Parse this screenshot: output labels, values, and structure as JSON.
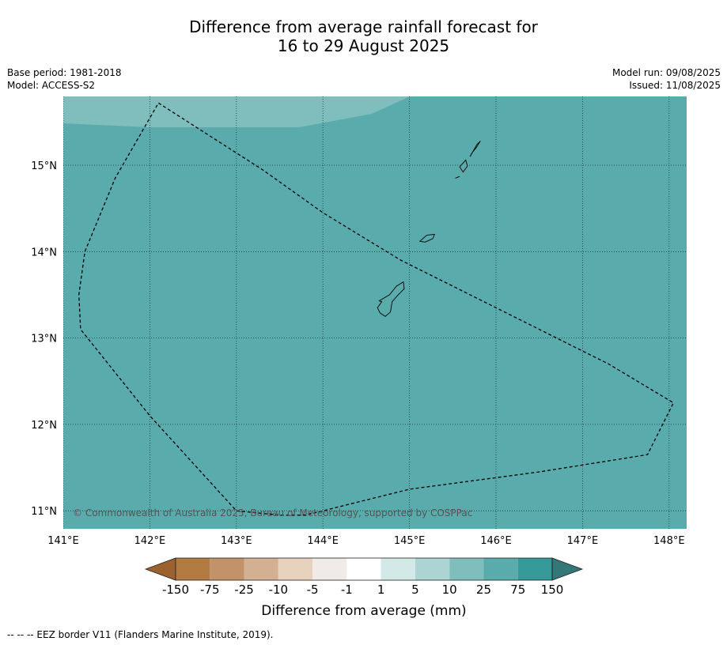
{
  "title_line1": "Difference from average rainfall forecast for",
  "title_line2": "16 to 29 August 2025",
  "base_period": "Base period: 1981-2018",
  "model": "Model: ACCESS-S2",
  "model_run": "Model run: 09/08/2025",
  "issued": "Issued: 11/08/2025",
  "copyright": "© Commonwealth of Australia 2025, Bureau of Meteorology, supported by COSPPac",
  "x_ticks": [
    "141°E",
    "142°E",
    "143°E",
    "144°E",
    "145°E",
    "146°E",
    "147°E",
    "148°E"
  ],
  "y_ticks": [
    "15°N",
    "14°N",
    "13°N",
    "12°N",
    "11°N"
  ],
  "colorbar": {
    "title": "Difference from average (mm)",
    "labels": [
      "-150",
      "-75",
      "-25",
      "-10",
      "-5",
      "-1",
      "1",
      "5",
      "10",
      "25",
      "75",
      "150"
    ],
    "colors": [
      "#9b6230",
      "#b07a40",
      "#c29269",
      "#d4b092",
      "#e6d1bd",
      "#f0ebe7",
      "#ffffff",
      "#d3e9e7",
      "#abd4d3",
      "#80bebd",
      "#5aabac",
      "#35999a",
      "#337777"
    ]
  },
  "map": {
    "colors": {
      "ocean_main": "#5aabac",
      "ocean_light": "#80bebd"
    },
    "lon_range": [
      141,
      148.2
    ],
    "lat_range": [
      10.8,
      15.8
    ],
    "eez_border": [
      [
        142.1,
        15.72
      ],
      [
        143.3,
        14.95
      ],
      [
        144.0,
        14.45
      ],
      [
        144.9,
        13.9
      ],
      [
        145.2,
        13.75
      ],
      [
        146.0,
        13.35
      ],
      [
        146.8,
        12.95
      ],
      [
        147.3,
        12.7
      ],
      [
        148.05,
        12.25
      ],
      [
        147.75,
        11.65
      ],
      [
        146.5,
        11.45
      ],
      [
        145.0,
        11.25
      ],
      [
        143.8,
        10.95
      ],
      [
        143.5,
        10.95
      ],
      [
        143.0,
        11.0
      ],
      [
        142.0,
        12.1
      ],
      [
        141.2,
        13.1
      ],
      [
        141.18,
        13.5
      ],
      [
        141.25,
        14.0
      ],
      [
        141.6,
        14.85
      ],
      [
        142.1,
        15.72
      ]
    ],
    "islands": [
      {
        "name": "guam",
        "points": [
          [
            144.65,
            13.43
          ],
          [
            144.77,
            13.5
          ],
          [
            144.85,
            13.6
          ],
          [
            144.93,
            13.65
          ],
          [
            144.94,
            13.57
          ],
          [
            144.87,
            13.5
          ],
          [
            144.8,
            13.42
          ],
          [
            144.78,
            13.3
          ],
          [
            144.72,
            13.25
          ],
          [
            144.66,
            13.29
          ],
          [
            144.63,
            13.35
          ],
          [
            144.68,
            13.42
          ],
          [
            144.65,
            13.43
          ]
        ]
      },
      {
        "name": "rota",
        "points": [
          [
            145.12,
            14.12
          ],
          [
            145.2,
            14.19
          ],
          [
            145.29,
            14.2
          ],
          [
            145.27,
            14.15
          ],
          [
            145.18,
            14.11
          ],
          [
            145.12,
            14.12
          ]
        ]
      },
      {
        "name": "tinian",
        "points": [
          [
            145.58,
            14.98
          ],
          [
            145.65,
            15.06
          ],
          [
            145.67,
            14.99
          ],
          [
            145.62,
            14.92
          ],
          [
            145.58,
            14.98
          ]
        ]
      },
      {
        "name": "saipan",
        "points": [
          [
            145.7,
            15.1
          ],
          [
            145.78,
            15.24
          ],
          [
            145.82,
            15.28
          ],
          [
            145.77,
            15.2
          ],
          [
            145.72,
            15.14
          ],
          [
            145.7,
            15.1
          ]
        ]
      },
      {
        "name": "aguijan",
        "points": [
          [
            145.53,
            14.85
          ],
          [
            145.58,
            14.87
          ]
        ]
      }
    ]
  },
  "footnote": "-- -- -- EEZ border V11 (Flanders Marine Institute, 2019)."
}
